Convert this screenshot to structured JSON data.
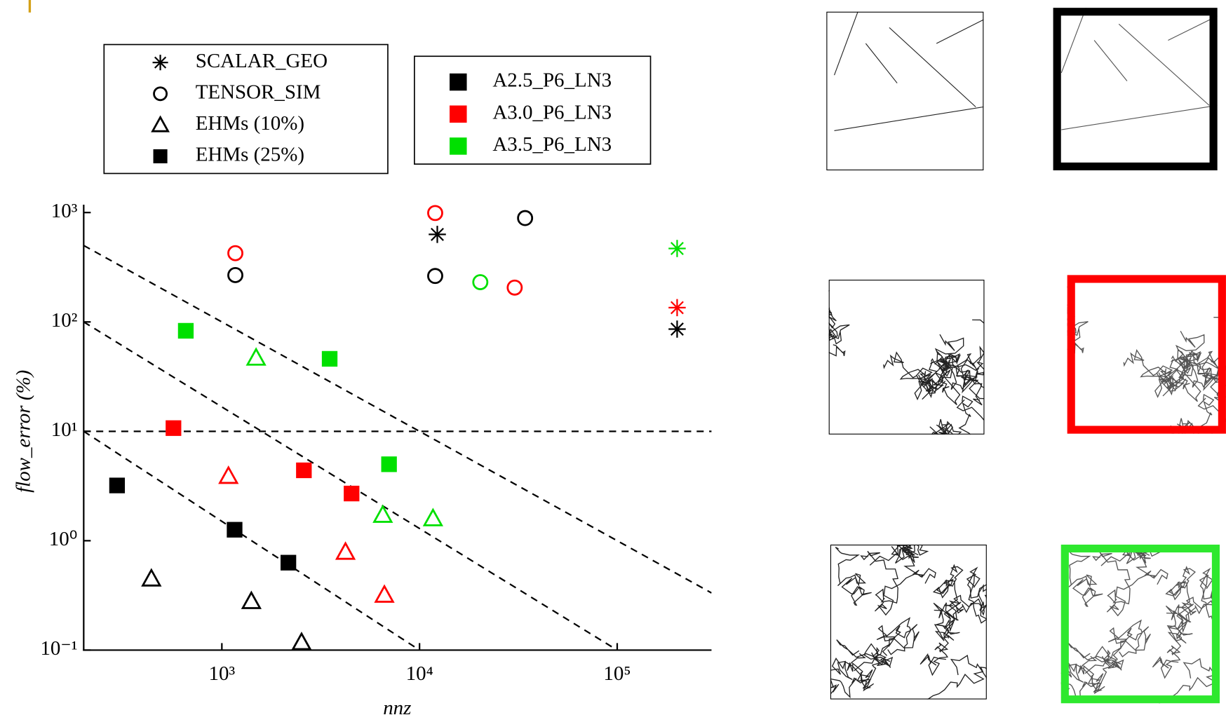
{
  "chart_data": {
    "type": "scatter",
    "xlabel": "nnz",
    "ylabel": "flow_error (%)",
    "log_x": true,
    "log_y": true,
    "xlim": [
      200,
      300000
    ],
    "ylim": [
      0.1,
      1000
    ],
    "xticks": [
      {
        "value": 1000,
        "label": "10³"
      },
      {
        "value": 10000,
        "label": "10⁴"
      },
      {
        "value": 100000,
        "label": "10⁵"
      }
    ],
    "yticks": [
      {
        "value": 0.1,
        "label": "10⁻¹"
      },
      {
        "value": 1,
        "label": "10⁰"
      },
      {
        "value": 10,
        "label": "10¹"
      },
      {
        "value": 100,
        "label": "10²"
      },
      {
        "value": 1000,
        "label": "10³"
      }
    ],
    "datasets": [
      {
        "name": "A2.5_P6_LN3",
        "color": "#000000"
      },
      {
        "name": "A3.0_P6_LN3",
        "color": "#ff0000"
      },
      {
        "name": "A3.5_P6_LN3",
        "color": "#00e000"
      }
    ],
    "series": [
      {
        "name": "SCALAR_GEO",
        "marker": "star",
        "groups": [
          {
            "x": [
              12300,
              201000
            ],
            "y": [
              631,
              86
            ]
          },
          {
            "x": [
              201000
            ],
            "y": [
              135
            ]
          },
          {
            "x": [
              201000
            ],
            "y": [
              469
            ]
          }
        ]
      },
      {
        "name": "TENSOR_SIM",
        "marker": "circle",
        "groups": [
          {
            "x": [
              1170,
              12000,
              34200
            ],
            "y": [
              268,
              263,
              890
            ]
          },
          {
            "x": [
              1170,
              12000,
              30300
            ],
            "y": [
              425,
              990,
              206
            ]
          },
          {
            "x": [
              20300
            ],
            "y": [
              231
            ]
          }
        ]
      },
      {
        "name": "EHMs (10%)",
        "marker": "triangle",
        "groups": [
          {
            "x": [
              440,
              1410,
              2530
            ],
            "y": [
              0.45,
              0.28,
              0.118
            ]
          },
          {
            "x": [
              1080,
              4220,
              6640
            ],
            "y": [
              3.9,
              0.79,
              0.32
            ]
          },
          {
            "x": [
              1490,
              6520,
              11700
            ],
            "y": [
              47,
              1.72,
              1.6
            ]
          }
        ]
      },
      {
        "name": "EHMs (25%)",
        "marker": "square",
        "groups": [
          {
            "x": [
              295,
              1160,
              2170
            ],
            "y": [
              3.2,
              1.26,
              0.63
            ]
          },
          {
            "x": [
              569,
              2600,
              4530
            ],
            "y": [
              10.7,
              4.4,
              2.7
            ]
          },
          {
            "x": [
              657,
              3510,
              7010
            ],
            "y": [
              83,
              46,
              5.0
            ]
          }
        ]
      }
    ],
    "reference_lines": [
      {
        "x": [
          200,
          300000
        ],
        "y": [
          10,
          10
        ]
      },
      {
        "x": [
          200,
          300000
        ],
        "y": [
          500,
          0.3333
        ]
      },
      {
        "x": [
          200,
          100000
        ],
        "y": [
          100,
          0.1
        ]
      },
      {
        "x": [
          200,
          10000
        ],
        "y": [
          10,
          0.1
        ]
      }
    ]
  }
}
